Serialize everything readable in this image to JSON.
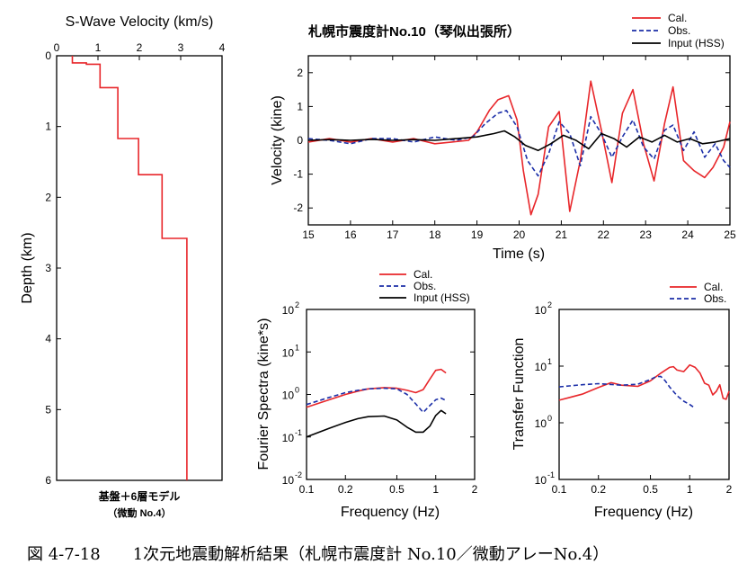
{
  "colors": {
    "cal": "#e8262a",
    "obs": "#1c2fa8",
    "input": "#000000"
  },
  "panels": {
    "profile": {
      "title": "S-Wave Velocity (km/s)",
      "ylabel": "Depth (km)",
      "xticks": [
        "0",
        "1",
        "2",
        "3",
        "4"
      ],
      "yticks": [
        "0",
        "1",
        "2",
        "3",
        "4",
        "5",
        "6"
      ],
      "note_line1": "基盤＋6層モデル",
      "note_line2": "（微動 No.4）"
    },
    "velocity": {
      "title": "札幌市震度計No.10（琴似出張所）",
      "xlabel": "Time (s)",
      "ylabel": "Velocity (kine)",
      "xticks": [
        "15",
        "16",
        "17",
        "18",
        "19",
        "20",
        "21",
        "22",
        "23",
        "24",
        "25"
      ],
      "yticks": [
        "2",
        "1",
        "0",
        "-1",
        "-2"
      ],
      "legend": [
        "Cal.",
        "Obs.",
        "Input (HSS)"
      ]
    },
    "fourier": {
      "xlabel": "Frequency (Hz)",
      "ylabel": "Fourier Spectra (kine*s)",
      "xticks": [
        "0.1",
        "0.2",
        "0.5",
        "1",
        "2"
      ],
      "ytick_base": [
        "10",
        "10",
        "10",
        "10",
        "10"
      ],
      "ytick_exp": [
        "2",
        "1",
        "0",
        "-1",
        "-2"
      ],
      "legend": [
        "Cal.",
        "Obs.",
        "Input (HSS)"
      ]
    },
    "transfer": {
      "xlabel": "Frequency (Hz)",
      "ylabel": "Transfer Function",
      "xticks": [
        "0.1",
        "0.2",
        "0.5",
        "1",
        "2"
      ],
      "ytick_base": [
        "10",
        "10",
        "10",
        "10"
      ],
      "ytick_exp": [
        "2",
        "1",
        "0",
        "-1"
      ],
      "legend": [
        "Cal.",
        "Obs."
      ]
    }
  },
  "caption": "図 4-7-18　　1次元地震動解析結果（札幌市震度計 No.10／微動アレーNo.4）",
  "chart_data": [
    {
      "type": "line",
      "title": "S-Wave Velocity (km/s)",
      "xlabel": "S-Wave Velocity (km/s)",
      "ylabel": "Depth (km)",
      "xlim": [
        0,
        4
      ],
      "ylim": [
        6,
        0
      ],
      "series": [
        {
          "depth": [
            0,
            0.1,
            0.1,
            0.12,
            0.12,
            0.45,
            0.45,
            1.17,
            1.17,
            1.68,
            1.68,
            2.58,
            2.58,
            6.0
          ],
          "velocity": [
            0.38,
            0.38,
            0.72,
            0.72,
            1.05,
            1.05,
            1.48,
            1.48,
            1.98,
            1.98,
            2.55,
            2.55,
            3.15,
            3.15
          ]
        }
      ]
    },
    {
      "type": "line",
      "title": "札幌市震度計No.10（琴似出張所）",
      "xlabel": "Time (s)",
      "ylabel": "Velocity (kine)",
      "xlim": [
        15,
        25
      ],
      "ylim": [
        -2.5,
        2.5
      ],
      "series": [
        {
          "name": "Cal.",
          "x": [
            15.0,
            15.5,
            16.0,
            16.5,
            17.0,
            17.5,
            18.0,
            18.4,
            18.8,
            19.0,
            19.3,
            19.5,
            19.75,
            19.95,
            20.1,
            20.28,
            20.45,
            20.7,
            20.95,
            21.2,
            21.45,
            21.7,
            21.95,
            22.2,
            22.45,
            22.7,
            22.95,
            23.2,
            23.45,
            23.65,
            23.9,
            24.15,
            24.4,
            24.6,
            24.85,
            25.0
          ],
          "y": [
            -0.05,
            0.05,
            -0.05,
            0.05,
            -0.05,
            0.05,
            -0.1,
            -0.05,
            0.0,
            0.25,
            0.9,
            1.2,
            1.32,
            0.6,
            -0.9,
            -2.2,
            -1.6,
            0.4,
            0.85,
            -2.1,
            -0.6,
            1.75,
            0.3,
            -1.25,
            0.8,
            1.5,
            -0.1,
            -1.2,
            0.5,
            1.58,
            -0.6,
            -0.9,
            -1.1,
            -0.8,
            -0.2,
            0.55
          ]
        },
        {
          "name": "Obs.",
          "x": [
            15.0,
            15.5,
            16.0,
            16.5,
            17.0,
            17.5,
            18.0,
            18.5,
            18.9,
            19.2,
            19.5,
            19.7,
            19.95,
            20.2,
            20.45,
            20.7,
            20.95,
            21.2,
            21.45,
            21.7,
            21.95,
            22.2,
            22.45,
            22.7,
            22.95,
            23.2,
            23.45,
            23.65,
            23.9,
            24.15,
            24.4,
            24.65,
            24.85,
            25.0
          ],
          "y": [
            0.05,
            0.0,
            -0.1,
            0.05,
            0.05,
            -0.05,
            0.1,
            0.0,
            0.1,
            0.5,
            0.8,
            0.88,
            0.4,
            -0.6,
            -1.05,
            -0.4,
            0.55,
            0.2,
            -0.75,
            0.7,
            0.2,
            -0.5,
            0.1,
            0.6,
            -0.2,
            -0.55,
            0.3,
            0.45,
            -0.3,
            0.25,
            -0.5,
            -0.1,
            -0.6,
            -0.8
          ]
        },
        {
          "name": "Input (HSS)",
          "x": [
            15.0,
            15.5,
            16.0,
            16.5,
            17.0,
            17.5,
            18.0,
            18.5,
            19.0,
            19.4,
            19.65,
            19.9,
            20.15,
            20.45,
            20.75,
            21.05,
            21.35,
            21.65,
            21.95,
            22.25,
            22.55,
            22.85,
            23.15,
            23.45,
            23.75,
            24.05,
            24.35,
            24.65,
            25.0
          ],
          "y": [
            0.0,
            0.02,
            0.0,
            0.03,
            0.0,
            0.02,
            0.0,
            0.05,
            0.1,
            0.2,
            0.28,
            0.1,
            -0.15,
            -0.3,
            -0.1,
            0.15,
            0.0,
            -0.25,
            0.2,
            0.05,
            -0.2,
            0.1,
            -0.05,
            0.15,
            -0.05,
            0.05,
            -0.1,
            -0.05,
            0.05
          ]
        }
      ]
    },
    {
      "type": "line",
      "xlabel": "Frequency (Hz)",
      "ylabel": "Fourier Spectra (kine*s)",
      "xscale": "log",
      "yscale": "log",
      "xlim": [
        0.1,
        2
      ],
      "ylim": [
        0.01,
        100
      ],
      "series": [
        {
          "name": "Cal.",
          "x": [
            0.1,
            0.15,
            0.2,
            0.25,
            0.3,
            0.4,
            0.5,
            0.6,
            0.7,
            0.8,
            0.9,
            1.0,
            1.1,
            1.2
          ],
          "y": [
            0.5,
            0.75,
            1.0,
            1.2,
            1.35,
            1.45,
            1.4,
            1.25,
            1.1,
            1.3,
            2.3,
            3.7,
            3.9,
            3.2
          ]
        },
        {
          "name": "Obs.",
          "x": [
            0.1,
            0.15,
            0.2,
            0.25,
            0.3,
            0.4,
            0.5,
            0.6,
            0.7,
            0.8,
            0.9,
            1.0,
            1.1,
            1.2
          ],
          "y": [
            0.58,
            0.85,
            1.1,
            1.25,
            1.35,
            1.4,
            1.35,
            1.0,
            0.6,
            0.38,
            0.55,
            0.75,
            0.82,
            0.72
          ]
        },
        {
          "name": "Input (HSS)",
          "x": [
            0.1,
            0.15,
            0.2,
            0.25,
            0.3,
            0.4,
            0.5,
            0.6,
            0.7,
            0.8,
            0.9,
            1.0,
            1.1,
            1.2
          ],
          "y": [
            0.1,
            0.16,
            0.22,
            0.27,
            0.3,
            0.31,
            0.25,
            0.17,
            0.13,
            0.13,
            0.18,
            0.32,
            0.42,
            0.35
          ]
        }
      ]
    },
    {
      "type": "line",
      "xlabel": "Frequency (Hz)",
      "ylabel": "Transfer Function",
      "xscale": "log",
      "yscale": "log",
      "xlim": [
        0.1,
        2
      ],
      "ylim": [
        0.1,
        100
      ],
      "series": [
        {
          "name": "Cal.",
          "x": [
            0.1,
            0.15,
            0.2,
            0.25,
            0.3,
            0.4,
            0.5,
            0.6,
            0.7,
            0.75,
            0.8,
            0.9,
            1.0,
            1.1,
            1.2,
            1.3,
            1.4,
            1.5,
            1.6,
            1.7,
            1.8,
            1.9,
            2.0
          ],
          "y": [
            2.5,
            3.2,
            4.2,
            5.1,
            4.6,
            4.4,
            5.5,
            7.5,
            9.5,
            9.8,
            8.5,
            8.0,
            10.5,
            9.5,
            7.5,
            5.0,
            4.6,
            3.1,
            3.6,
            4.7,
            2.7,
            2.6,
            3.6
          ]
        },
        {
          "name": "Obs.",
          "x": [
            0.1,
            0.15,
            0.2,
            0.3,
            0.4,
            0.5,
            0.55,
            0.6,
            0.65,
            0.7,
            0.8,
            0.9,
            1.0,
            1.1
          ],
          "y": [
            4.3,
            4.7,
            4.9,
            4.6,
            4.8,
            5.8,
            6.5,
            6.6,
            5.5,
            4.3,
            3.0,
            2.4,
            2.1,
            1.8
          ]
        }
      ]
    }
  ]
}
